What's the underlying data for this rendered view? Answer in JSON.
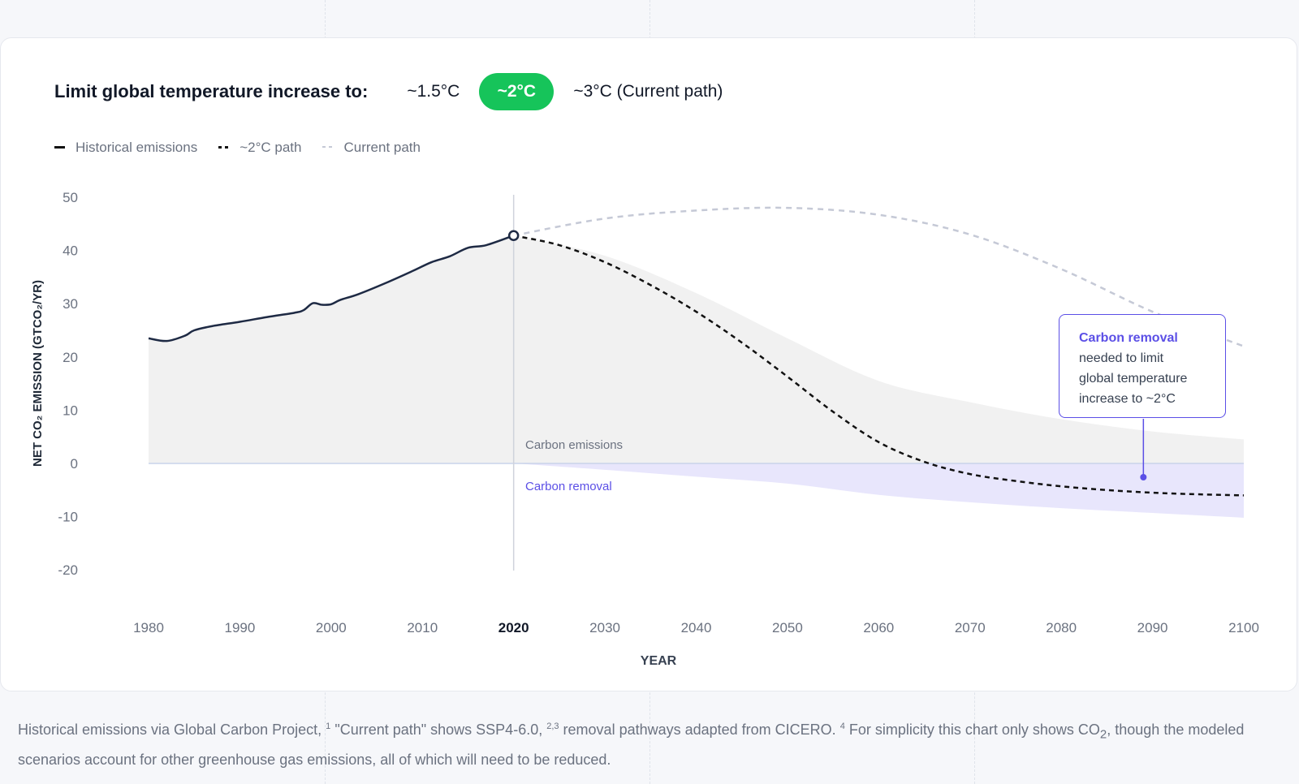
{
  "toggle": {
    "label": "Limit global temperature increase to:",
    "options": [
      "~1.5°C",
      "~2°C",
      "~3°C (Current path)"
    ],
    "selected": "~2°C",
    "selected_color": "#16c45a"
  },
  "legend": {
    "historical": "Historical emissions",
    "two_deg": "~2°C path",
    "current": "Current path"
  },
  "annotations": {
    "emissions": "Carbon emissions",
    "removal": "Carbon removal",
    "callout_title": "Carbon removal",
    "callout_lines": [
      "needed to limit",
      "global temperature",
      "increase to ~2°C"
    ]
  },
  "footnote": {
    "p1": "Historical emissions via Global Carbon Project,",
    "s1": "1",
    "p2": "\"Current path\" shows SSP4-6.0,",
    "s2": "2,3",
    "p3": "removal pathways adapted from CICERO.",
    "s3": "4",
    "p4": "For simplicity this chart only shows CO",
    "sub": "2",
    "p5": ", though the modeled scenarios account for other greenhouse gas emissions, all of which will need to be reduced."
  },
  "colors": {
    "historical": "#1e2a44",
    "path": "#111111",
    "current": "#c5c9d6",
    "emission_fill": "#f1f1f1",
    "removal_fill": "#e8e6fc",
    "accent": "#5b4fe6"
  },
  "chart_data": {
    "type": "line",
    "xlabel": "YEAR",
    "ylabel": "NET CO₂ EMISSION (GTCO₂/YR)",
    "xlim": [
      1980,
      2100
    ],
    "ylim": [
      -20,
      50
    ],
    "x_ticks": [
      1980,
      1990,
      2000,
      2010,
      2020,
      2030,
      2040,
      2050,
      2060,
      2070,
      2080,
      2090,
      2100
    ],
    "y_ticks": [
      50,
      40,
      30,
      20,
      10,
      0,
      -10,
      -20
    ],
    "highlight_year": 2020,
    "series": [
      {
        "name": "Historical emissions",
        "x": [
          1980,
          1982,
          1984,
          1985,
          1987,
          1990,
          1993,
          1996,
          1997,
          1998,
          1999,
          2000,
          2001,
          2003,
          2006,
          2009,
          2011,
          2013,
          2015,
          2017,
          2020
        ],
        "y": [
          23.5,
          23,
          24,
          25,
          25.8,
          26.6,
          27.5,
          28.3,
          28.8,
          30.1,
          29.8,
          29.9,
          30.7,
          31.8,
          33.9,
          36.2,
          37.8,
          38.9,
          40.5,
          41,
          42.8
        ]
      },
      {
        "name": "~2°C path",
        "x": [
          2020,
          2025,
          2030,
          2035,
          2040,
          2045,
          2050,
          2055,
          2060,
          2065,
          2070,
          2075,
          2080,
          2085,
          2090,
          2095,
          2100
        ],
        "y": [
          42.8,
          41,
          37.8,
          33.5,
          28.5,
          22.7,
          16.3,
          9.7,
          4,
          0.3,
          -2,
          -3.3,
          -4.3,
          -5,
          -5.5,
          -5.8,
          -6
        ]
      },
      {
        "name": "Current path",
        "x": [
          2020,
          2030,
          2040,
          2050,
          2060,
          2070,
          2080,
          2090,
          2100
        ],
        "y": [
          42.8,
          46,
          47.5,
          48,
          46.7,
          43,
          36.5,
          28.5,
          22
        ]
      },
      {
        "name": "Carbon emissions",
        "x": [
          2020,
          2030,
          2040,
          2050,
          2060,
          2070,
          2080,
          2090,
          2100
        ],
        "y": [
          42.8,
          39,
          32,
          23.5,
          15.5,
          11.5,
          8.3,
          6,
          4.5
        ]
      },
      {
        "name": "Carbon removal",
        "x": [
          2020,
          2030,
          2040,
          2050,
          2060,
          2070,
          2080,
          2090,
          2100
        ],
        "y": [
          0,
          -1.2,
          -2.5,
          -3.8,
          -5.9,
          -7.3,
          -8.4,
          -9.3,
          -10.2
        ]
      }
    ],
    "callout_year": 2089
  }
}
